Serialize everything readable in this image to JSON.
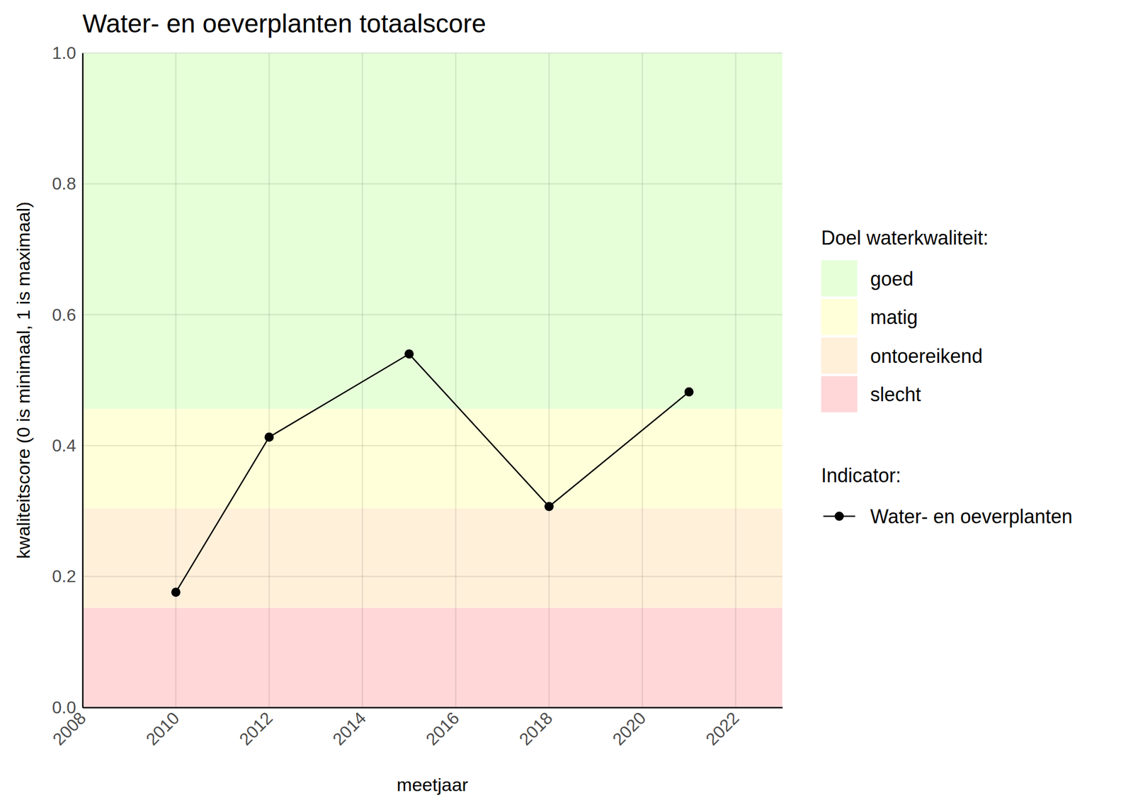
{
  "chart_data": {
    "type": "line",
    "title": "Water- en oeverplanten totaalscore",
    "x_label": "meetjaar",
    "y_label": "kwaliteitscore (0 is minimaal, 1 is maximaal)",
    "x": [
      2010,
      2012,
      2015,
      2018,
      2021
    ],
    "series": [
      {
        "name": "Water- en oeverplanten",
        "color": "#000000",
        "marker": "circle",
        "line_style": "solid",
        "values": [
          0.176,
          0.413,
          0.54,
          0.307,
          0.482
        ]
      }
    ],
    "xlim": [
      2008,
      2023
    ],
    "xticks": [
      2008,
      2010,
      2012,
      2014,
      2016,
      2018,
      2020,
      2022
    ],
    "ylim": [
      0,
      1
    ],
    "yticks": [
      {
        "value": 0,
        "label": "0.0"
      },
      0.2,
      0.4,
      0.6,
      0.8,
      {
        "value": 1,
        "label": "1.0"
      }
    ],
    "grid": true,
    "legend": "right",
    "band_legend_title": "Doel waterkwaliteit:",
    "series_legend_title": "Indicator:",
    "bands": [
      {
        "name": "goed",
        "from": 0.456,
        "to": 1.0,
        "color": "#e6ffd9"
      },
      {
        "name": "matig",
        "from": 0.304,
        "to": 0.456,
        "color": "#ffffd9"
      },
      {
        "name": "ontoereikend",
        "from": 0.152,
        "to": 0.304,
        "color": "#fff0da"
      },
      {
        "name": "slecht",
        "from": 0,
        "to": 0.152,
        "color": "#ffd7d9"
      }
    ]
  }
}
